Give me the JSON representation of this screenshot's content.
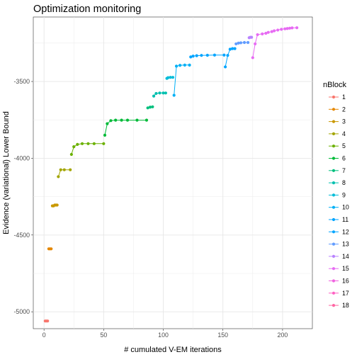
{
  "chart_data": {
    "type": "line",
    "title": "Optimization monitoring",
    "xlabel": "# cumulated V-EM iterations",
    "ylabel": "Evidence (variational) Lower Bound",
    "xlim": [
      -9,
      225
    ],
    "ylim": [
      -5110,
      -3080
    ],
    "x_ticks": [
      0,
      50,
      100,
      150,
      200
    ],
    "y_ticks": [
      -5000,
      -4500,
      -4000,
      -3500
    ],
    "grid": true,
    "legend": {
      "title": "nBlock",
      "position": "right"
    },
    "series": [
      {
        "name": "1",
        "color": "#F8766D",
        "x": [
          1,
          2,
          3
        ],
        "y": [
          -5060,
          -5060,
          -5060
        ]
      },
      {
        "name": "2",
        "color": "#E58700",
        "x": [
          4,
          5,
          6
        ],
        "y": [
          -4590,
          -4590,
          -4590
        ]
      },
      {
        "name": "3",
        "color": "#C99800",
        "x": [
          7,
          8,
          9,
          10,
          11
        ],
        "y": [
          -4310,
          -4310,
          -4305,
          -4305,
          -4305
        ]
      },
      {
        "name": "4",
        "color": "#A3A500",
        "x": [
          12,
          14,
          17,
          22
        ],
        "y": [
          -4120,
          -4075,
          -4075,
          -4075
        ]
      },
      {
        "name": "5",
        "color": "#6BB100",
        "x": [
          23,
          25,
          28,
          32,
          37,
          42,
          50
        ],
        "y": [
          -3975,
          -3925,
          -3910,
          -3905,
          -3905,
          -3905,
          -3905
        ]
      },
      {
        "name": "6",
        "color": "#00BA38",
        "x": [
          51,
          53,
          56,
          60,
          65,
          70,
          78,
          86
        ],
        "y": [
          -3850,
          -3775,
          -3755,
          -3752,
          -3752,
          -3752,
          -3752,
          -3752
        ]
      },
      {
        "name": "7",
        "color": "#00BF7D",
        "x": [
          87,
          89,
          91
        ],
        "y": [
          -3672,
          -3667,
          -3665
        ]
      },
      {
        "name": "8",
        "color": "#00C0AF",
        "x": [
          92,
          94,
          97,
          100,
          102
        ],
        "y": [
          -3595,
          -3578,
          -3575,
          -3575,
          -3575
        ]
      },
      {
        "name": "9",
        "color": "#00BCD8",
        "x": [
          103,
          104,
          106,
          108
        ],
        "y": [
          -3480,
          -3475,
          -3473,
          -3473
        ]
      },
      {
        "name": "10",
        "color": "#00B0F6",
        "x": [
          109,
          111,
          114,
          118,
          122
        ],
        "y": [
          -3590,
          -3400,
          -3395,
          -3393,
          -3393
        ]
      },
      {
        "name": "11",
        "color": "#00A5FF",
        "x": [
          123,
          125,
          128,
          132,
          137,
          143,
          151
        ],
        "y": [
          -3340,
          -3335,
          -3332,
          -3330,
          -3329,
          -3328,
          -3328
        ]
      },
      {
        "name": "12",
        "color": "#00A5FF",
        "x": [
          152,
          154,
          156,
          158,
          160
        ],
        "y": [
          -3405,
          -3330,
          -3290,
          -3286,
          -3286
        ]
      },
      {
        "name": "13",
        "color": "#619CFF",
        "x": [
          161,
          163,
          165,
          168,
          171
        ],
        "y": [
          -3255,
          -3250,
          -3248,
          -3246,
          -3246
        ]
      },
      {
        "name": "14",
        "color": "#B983FF",
        "x": [
          172,
          173,
          174
        ],
        "y": [
          -3215,
          -3212,
          -3212
        ]
      },
      {
        "name": "15",
        "color": "#E76BF3",
        "x": [
          175,
          177,
          179,
          183,
          186,
          188,
          191,
          193,
          196,
          199,
          202,
          204,
          206,
          208,
          212
        ],
        "y": [
          -3345,
          -3255,
          -3195,
          -3190,
          -3186,
          -3180,
          -3175,
          -3170,
          -3165,
          -3160,
          -3157,
          -3155,
          -3153,
          -3151,
          -3150
        ]
      },
      {
        "name": "16",
        "color": "#F063E0",
        "x": [],
        "y": []
      },
      {
        "name": "17",
        "color": "#FF61C3",
        "x": [],
        "y": []
      },
      {
        "name": "18",
        "color": "#FF67A4",
        "x": [],
        "y": []
      }
    ]
  }
}
